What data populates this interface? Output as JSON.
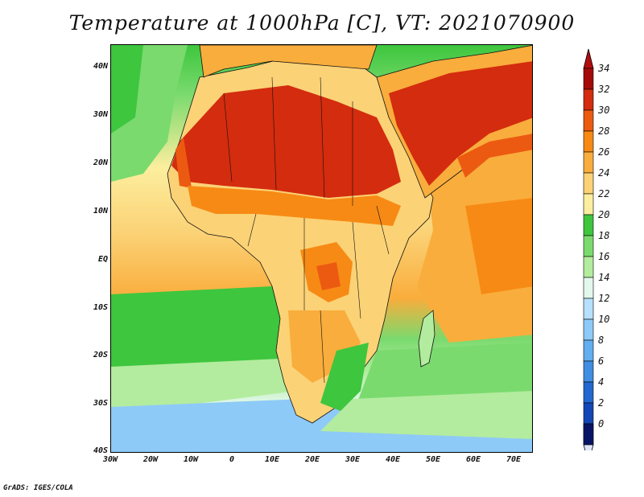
{
  "title": "Temperature at 1000hPa [C], VT: 2021070900",
  "credit": "GrADS: IGES/COLA",
  "map": {
    "y_ticks": [
      "40N",
      "30N",
      "20N",
      "10N",
      "EQ",
      "10S",
      "20S",
      "30S",
      "40S"
    ],
    "x_ticks": [
      "30W",
      "20W",
      "10W",
      "0",
      "10E",
      "20E",
      "30E",
      "40E",
      "50E",
      "60E",
      "70E"
    ]
  },
  "legend": {
    "labels": [
      "34",
      "32",
      "30",
      "28",
      "26",
      "24",
      "22",
      "20",
      "18",
      "16",
      "14",
      "12",
      "10",
      "8",
      "6",
      "4",
      "2",
      "0"
    ],
    "colors": [
      "#a50a0a",
      "#d42c0e",
      "#ec5a12",
      "#f78a14",
      "#f9ad3c",
      "#fbd276",
      "#fcee9e",
      "#3ec63e",
      "#7ada6e",
      "#b3ec9e",
      "#e2f8ec",
      "#b6e0fb",
      "#8ecaf7",
      "#63aeef",
      "#3f8ee2",
      "#2268d0",
      "#1446b6",
      "#0a2a8e",
      "#081466"
    ],
    "top_arrow_color": "#b00e0e",
    "bottom_arrow_color": "#e0e4fb"
  }
}
